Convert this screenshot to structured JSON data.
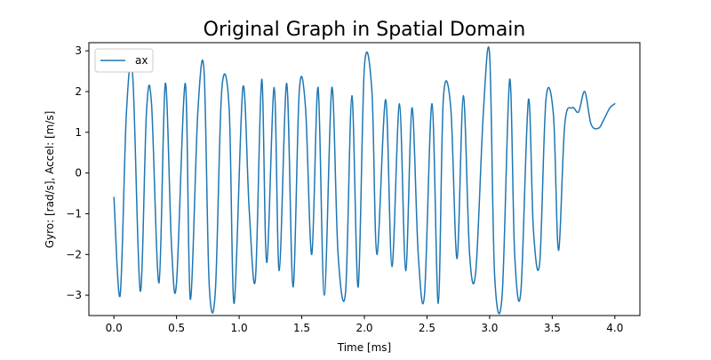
{
  "chart_data": {
    "type": "line",
    "title": "Original Graph in Spatial Domain",
    "xlabel": "Time [ms]",
    "ylabel": "Gyro: [rad/s], Accel: [m/s]",
    "xlim": [
      -0.2,
      4.2
    ],
    "ylim": [
      -3.5,
      3.2
    ],
    "xticks": [
      0.0,
      0.5,
      1.0,
      1.5,
      2.0,
      2.5,
      3.0,
      3.5,
      4.0
    ],
    "xtick_labels": [
      "0.0",
      "0.5",
      "1.0",
      "1.5",
      "2.0",
      "2.5",
      "3.0",
      "3.5",
      "4.0"
    ],
    "yticks": [
      -3,
      -2,
      -1,
      0,
      1,
      2,
      3
    ],
    "ytick_labels": [
      "−3",
      "−2",
      "−1",
      "0",
      "1",
      "2",
      "3"
    ],
    "grid": false,
    "legend_position": "upper-left",
    "series": [
      {
        "name": "ax",
        "color": "#1f77b4",
        "x": [
          0.0,
          0.05,
          0.1,
          0.15,
          0.21,
          0.26,
          0.3,
          0.36,
          0.41,
          0.46,
          0.5,
          0.57,
          0.61,
          0.67,
          0.72,
          0.76,
          0.81,
          0.86,
          0.92,
          0.96,
          1.03,
          1.08,
          1.13,
          1.18,
          1.22,
          1.28,
          1.32,
          1.38,
          1.43,
          1.48,
          1.53,
          1.58,
          1.63,
          1.68,
          1.74,
          1.79,
          1.85,
          1.9,
          1.95,
          2.0,
          2.06,
          2.1,
          2.17,
          2.22,
          2.28,
          2.33,
          2.38,
          2.43,
          2.48,
          2.54,
          2.59,
          2.63,
          2.69,
          2.74,
          2.79,
          2.84,
          2.89,
          2.95,
          3.0,
          3.04,
          3.1,
          3.16,
          3.2,
          3.25,
          3.31,
          3.35,
          3.4,
          3.45,
          3.51,
          3.55,
          3.6,
          3.66,
          3.71,
          3.76,
          3.81,
          3.87,
          3.91,
          3.96,
          4.0
        ],
        "y": [
          -0.6,
          -3.0,
          1.5,
          2.4,
          -2.9,
          1.5,
          1.7,
          -2.7,
          2.2,
          -1.8,
          -2.7,
          2.2,
          -3.1,
          1.5,
          2.5,
          -2.7,
          -2.9,
          2.0,
          1.6,
          -3.2,
          2.1,
          -0.9,
          -2.6,
          2.3,
          -2.2,
          2.1,
          -2.4,
          2.2,
          -2.8,
          2.0,
          1.6,
          -2.0,
          2.1,
          -3.0,
          2.1,
          -2.0,
          -2.9,
          1.9,
          -2.8,
          2.6,
          2.0,
          -2.0,
          1.8,
          -2.3,
          1.7,
          -2.4,
          1.6,
          -2.0,
          -3.0,
          1.7,
          -3.2,
          1.8,
          1.6,
          -2.1,
          1.9,
          -2.0,
          -2.4,
          1.5,
          2.9,
          -2.5,
          -3.0,
          2.3,
          -2.0,
          -2.9,
          1.8,
          -1.4,
          -2.2,
          1.8,
          1.4,
          -1.9,
          1.2,
          1.6,
          1.5,
          2.0,
          1.2,
          1.1,
          1.3,
          1.6,
          1.7
        ]
      }
    ]
  }
}
